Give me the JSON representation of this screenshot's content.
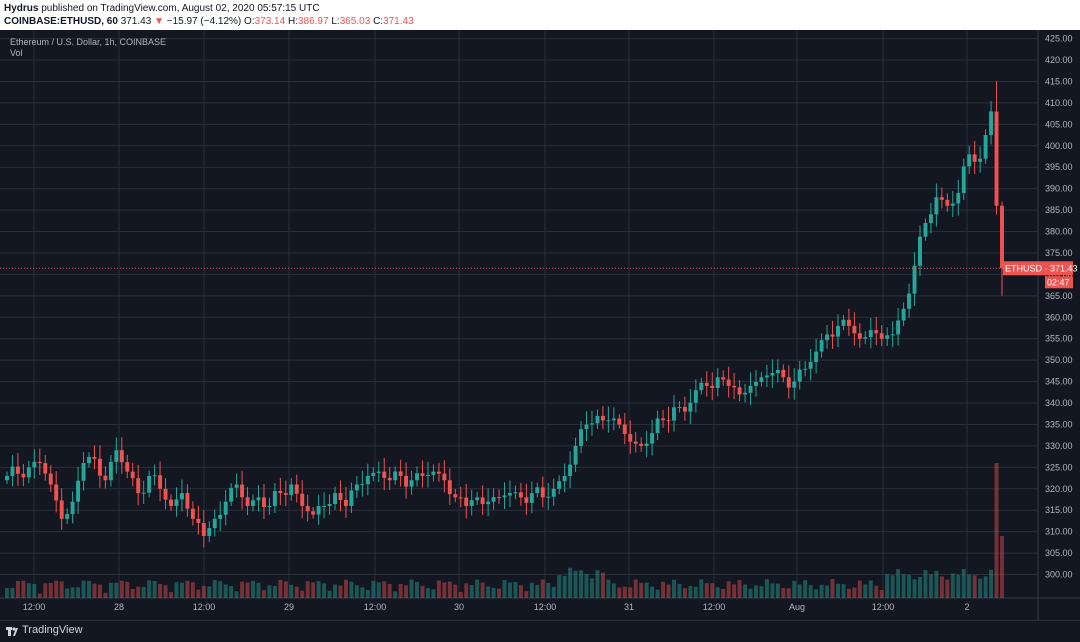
{
  "header": {
    "author": "Hydrus",
    "published": "published on TradingView.com, August 02, 2020 05:57:15 UTC",
    "symbol": "COINBASE:ETHUSD, 60",
    "last": "371.43",
    "arrow": "▼",
    "change": "−15.97 (−4.12%)",
    "o_label": "O:",
    "o_value": "373.14",
    "h_label": "H:",
    "h_value": "386.97",
    "l_label": "L:",
    "l_value": "365.03",
    "c_label": "C:",
    "c_value": "371.43"
  },
  "chart_overlay": {
    "title": "Ethereum / U.S. Dollar, 1h, COINBASE",
    "vol_label": "Vol",
    "price_tag": "ETHUSD · 371.43",
    "countdown": "02:47"
  },
  "footer": {
    "brand": "TradingView"
  },
  "colors": {
    "up": "#26a69a",
    "down": "#ef5350",
    "background": "#131722",
    "grid": "#2a2e39"
  },
  "chart_data": {
    "type": "candlestick",
    "title": "Ethereum / U.S. Dollar, 1h, COINBASE",
    "ylim": [
      295,
      427
    ],
    "y_ticks": [
      "425.00",
      "420.00",
      "415.00",
      "410.00",
      "405.00",
      "400.00",
      "395.00",
      "390.00",
      "385.00",
      "380.00",
      "375.00",
      "370.00",
      "365.00",
      "360.00",
      "355.00",
      "350.00",
      "345.00",
      "340.00",
      "335.00",
      "330.00",
      "325.00",
      "320.00",
      "315.00",
      "310.00",
      "305.00",
      "300.00"
    ],
    "x_ticks": [
      "12:00",
      "28",
      "12:00",
      "29",
      "12:00",
      "30",
      "12:00",
      "31",
      "12:00",
      "Aug",
      "12:00",
      "2"
    ],
    "last_price": 371.43,
    "keypoints": [
      [
        0,
        323
      ],
      [
        4,
        325
      ],
      [
        6,
        326
      ],
      [
        8,
        321
      ],
      [
        10,
        313
      ],
      [
        12,
        317
      ],
      [
        14,
        326
      ],
      [
        16,
        327
      ],
      [
        18,
        322
      ],
      [
        20,
        329
      ],
      [
        22,
        324
      ],
      [
        24,
        319
      ],
      [
        26,
        323
      ],
      [
        28,
        320
      ],
      [
        30,
        316
      ],
      [
        32,
        319
      ],
      [
        34,
        313
      ],
      [
        36,
        309
      ],
      [
        38,
        313
      ],
      [
        40,
        317
      ],
      [
        42,
        321
      ],
      [
        44,
        316
      ],
      [
        46,
        318
      ],
      [
        48,
        316
      ],
      [
        50,
        319
      ],
      [
        52,
        321
      ],
      [
        54,
        316
      ],
      [
        56,
        314
      ],
      [
        58,
        316
      ],
      [
        60,
        319
      ],
      [
        62,
        316
      ],
      [
        64,
        321
      ],
      [
        66,
        323
      ],
      [
        68,
        324
      ],
      [
        70,
        322
      ],
      [
        72,
        323
      ],
      [
        74,
        322
      ],
      [
        76,
        323
      ],
      [
        78,
        324
      ],
      [
        80,
        322
      ],
      [
        82,
        318
      ],
      [
        84,
        316
      ],
      [
        86,
        318
      ],
      [
        88,
        317
      ],
      [
        90,
        318
      ],
      [
        92,
        319
      ],
      [
        94,
        318
      ],
      [
        96,
        319
      ],
      [
        98,
        318
      ],
      [
        100,
        320
      ],
      [
        102,
        323
      ],
      [
        104,
        330
      ],
      [
        106,
        335
      ],
      [
        108,
        337
      ],
      [
        110,
        336
      ],
      [
        112,
        335
      ],
      [
        114,
        331
      ],
      [
        116,
        330
      ],
      [
        118,
        333
      ],
      [
        120,
        336
      ],
      [
        122,
        339
      ],
      [
        124,
        338
      ],
      [
        126,
        343
      ],
      [
        128,
        344
      ],
      [
        130,
        346
      ],
      [
        132,
        344
      ],
      [
        134,
        342
      ],
      [
        136,
        344
      ],
      [
        138,
        346
      ],
      [
        140,
        347
      ],
      [
        142,
        346
      ],
      [
        144,
        345
      ],
      [
        146,
        348
      ],
      [
        148,
        352
      ],
      [
        150,
        356
      ],
      [
        152,
        358
      ],
      [
        154,
        358
      ],
      [
        156,
        355
      ],
      [
        158,
        357
      ],
      [
        160,
        355
      ],
      [
        162,
        356
      ],
      [
        164,
        362
      ],
      [
        166,
        372
      ],
      [
        168,
        382
      ],
      [
        170,
        388
      ],
      [
        172,
        386
      ],
      [
        174,
        389
      ],
      [
        176,
        398
      ],
      [
        178,
        397
      ],
      [
        180,
        408
      ],
      [
        181,
        386
      ],
      [
        182,
        371.43
      ]
    ]
  }
}
